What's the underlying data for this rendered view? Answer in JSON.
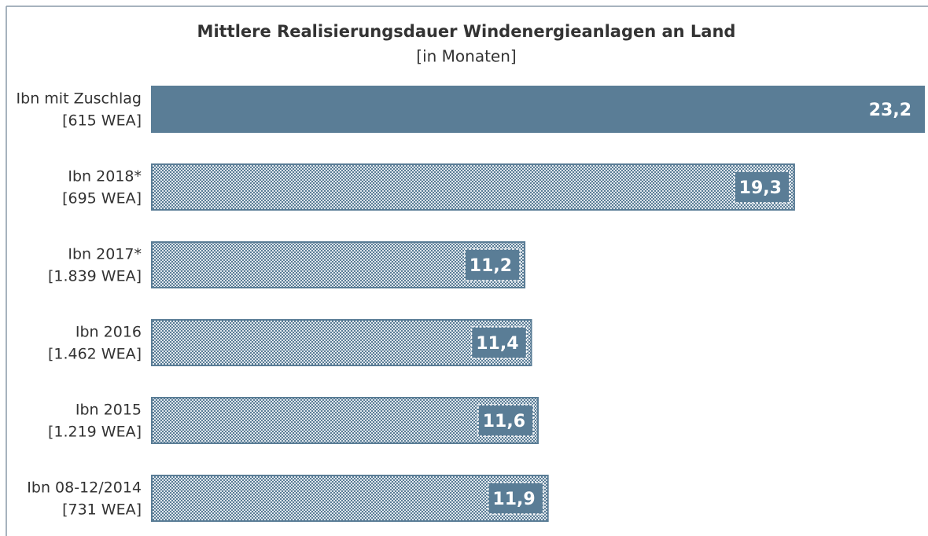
{
  "chart_data": {
    "type": "bar",
    "orientation": "horizontal",
    "title": "Mittlere Realisierungsdauer Windenergieanlagen an Land",
    "subtitle": "[in Monaten]",
    "categories": [
      [
        "Ibn mit Zuschlag",
        "[615 WEA]"
      ],
      [
        "Ibn 2018*",
        "[695 WEA]"
      ],
      [
        "Ibn 2017*",
        "[1.839 WEA]"
      ],
      [
        "Ibn 2016",
        "[1.462 WEA]"
      ],
      [
        "Ibn 2015",
        "[1.219 WEA]"
      ],
      [
        "Ibn 08-12/2014",
        "[731 WEA]"
      ]
    ],
    "values": [
      23.2,
      19.3,
      11.2,
      11.4,
      11.6,
      11.9
    ],
    "value_labels": [
      "23,2",
      "19,3",
      "11,2",
      "11,4",
      "11,6",
      "11,9"
    ],
    "patterned": [
      false,
      true,
      true,
      true,
      true,
      true
    ],
    "color": "#5a7d96"
  }
}
